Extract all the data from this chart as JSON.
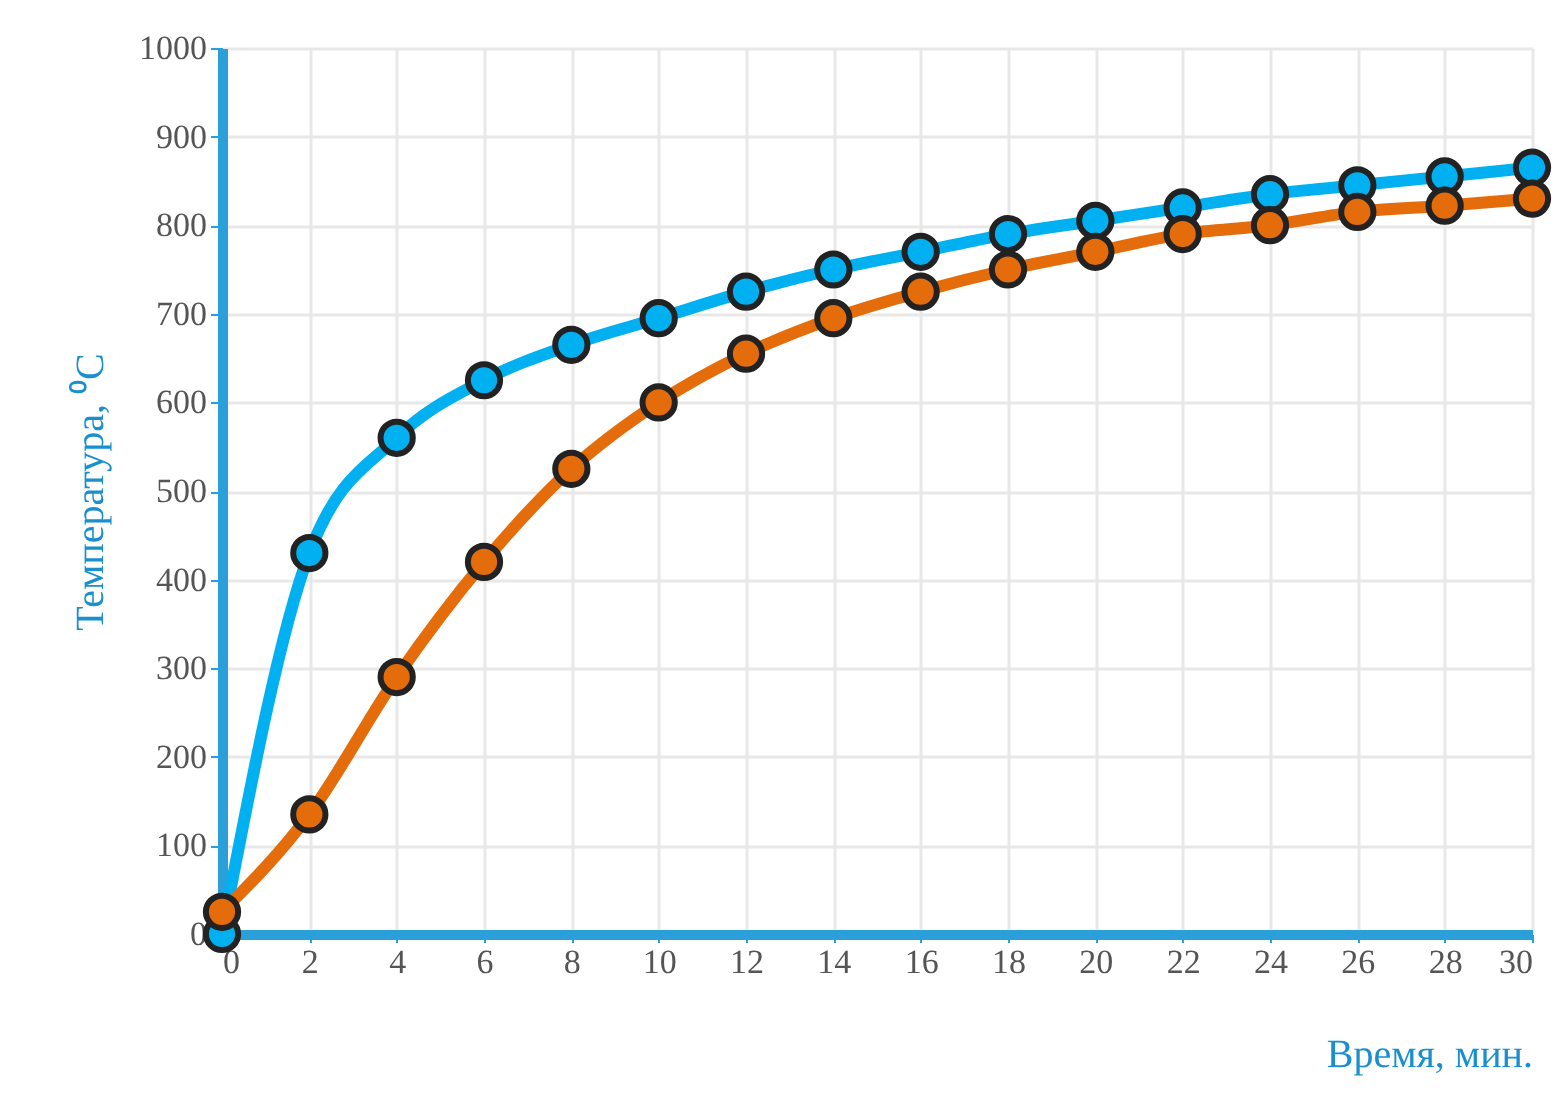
{
  "chart_data": {
    "type": "line",
    "xlabel": "Время, мин.",
    "ylabel": "Температура, ⁰C",
    "x": [
      0,
      2,
      4,
      6,
      8,
      10,
      12,
      14,
      16,
      18,
      20,
      22,
      24,
      26,
      28,
      30
    ],
    "series": [
      {
        "color": "#00b0f0",
        "values": [
          0,
          430,
          560,
          625,
          665,
          695,
          725,
          750,
          770,
          790,
          805,
          820,
          835,
          845,
          855,
          865
        ]
      },
      {
        "color": "#e46c0a",
        "values": [
          25,
          135,
          290,
          420,
          525,
          600,
          655,
          695,
          725,
          750,
          770,
          790,
          800,
          815,
          822,
          830
        ]
      }
    ],
    "xlim": [
      0,
      30
    ],
    "xticks": [
      0,
      2,
      4,
      6,
      8,
      10,
      12,
      14,
      16,
      18,
      20,
      22,
      24,
      26,
      28,
      30
    ],
    "ylim": [
      0,
      1000
    ],
    "yticks": [
      0,
      100,
      200,
      300,
      400,
      500,
      600,
      700,
      800,
      900,
      1000
    ],
    "grid": true,
    "marker": "circle",
    "line_style": "solid",
    "legend": false
  }
}
